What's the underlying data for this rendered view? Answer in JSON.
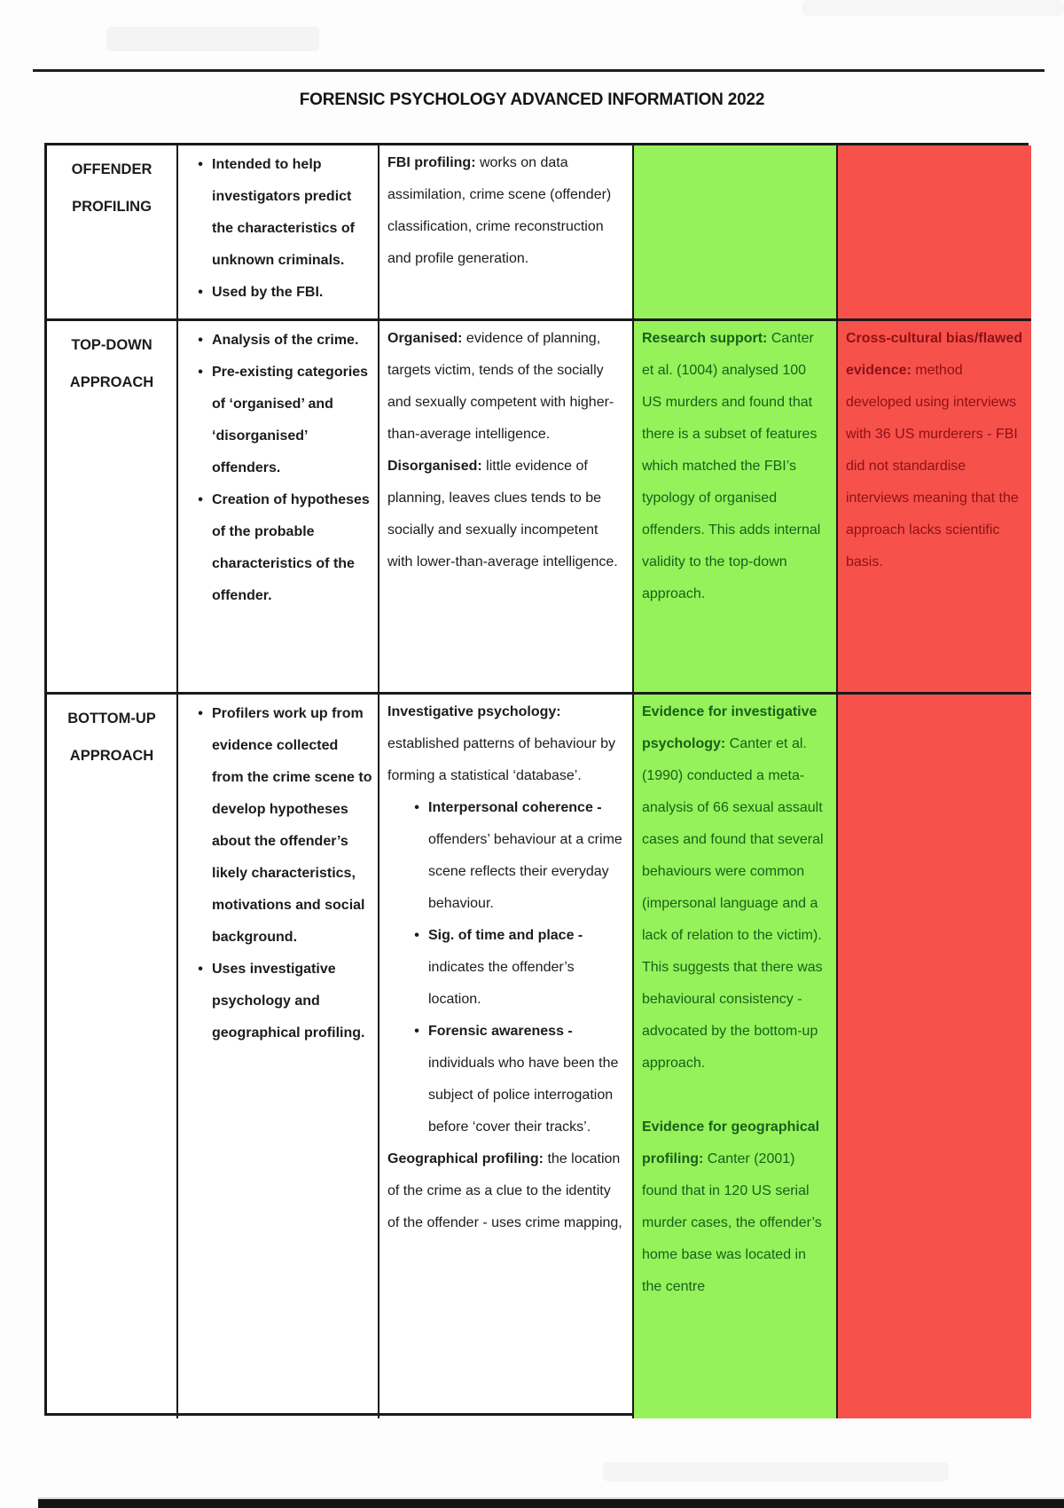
{
  "title": "FORENSIC PSYCHOLOGY ADVANCED INFORMATION 2022",
  "colors": {
    "green_bg": "#96F25A",
    "green_text": "#17611B",
    "red_bg": "#F7514C",
    "red_text": "#8C1115",
    "border": "#1A1A1A",
    "body_text": "#1C1C1C",
    "page_bg": "#FDFDFD"
  },
  "table": {
    "rows": [
      {
        "topic": "OFFENDER PROFILING",
        "points": [
          [
            {
              "t": "Intended to help investigators predict the characteristics of unknown criminals."
            }
          ],
          [
            {
              "t": "Used by the FBI."
            }
          ]
        ],
        "description": [
          {
            "type": "p",
            "segments": [
              {
                "b": true,
                "t": "FBI profiling:"
              },
              {
                "t": " works on data assimilation, crime scene (offender) classification, crime reconstruction and profile generation."
              }
            ]
          }
        ],
        "strength": [],
        "limitation": []
      },
      {
        "topic": "TOP-DOWN APPROACH",
        "points": [
          [
            {
              "t": "Analysis of the crime."
            }
          ],
          [
            {
              "t": "Pre-existing categories of ‘organised’ and ‘disorganised’ offenders."
            }
          ],
          [
            {
              "t": "Creation of hypotheses of the probable characteristics of the offender."
            }
          ]
        ],
        "description": [
          {
            "type": "p",
            "segments": [
              {
                "b": true,
                "t": "Organised:"
              },
              {
                "t": " evidence of planning, targets victim, tends of the socially and sexually competent with higher-than-average intelligence."
              }
            ]
          },
          {
            "type": "p",
            "segments": [
              {
                "b": true,
                "t": "Disorganised:"
              },
              {
                "t": " little evidence of planning, leaves clues tends to be socially and sexually incompetent with lower-than-average intelligence."
              }
            ]
          }
        ],
        "strength": [
          {
            "type": "p",
            "segments": [
              {
                "b": true,
                "t": "Research support:"
              },
              {
                "t": " Canter et al. (1004) analysed 100 US murders and found that there is a subset of features which matched the FBI’s typology of organised offenders. This adds internal validity to the top-down approach."
              }
            ]
          }
        ],
        "limitation": [
          {
            "type": "p",
            "segments": [
              {
                "b": true,
                "t": "Cross-cultural bias/flawed evidence:"
              },
              {
                "t": " method developed using interviews with 36 US murderers - FBI did not standardise interviews meaning that the approach lacks scientific basis."
              }
            ]
          }
        ]
      },
      {
        "topic": "BOTTOM-UP APPROACH",
        "points": [
          [
            {
              "t": "Profilers work up from evidence collected from the crime scene to develop hypotheses about the offender’s likely characteristics, motivations and social background."
            }
          ],
          [
            {
              "t": "Uses investigative psychology and geographical profiling."
            }
          ]
        ],
        "description": [
          {
            "type": "p",
            "segments": [
              {
                "b": true,
                "t": "Investigative psychology:"
              },
              {
                "t": " established patterns of behaviour by forming a statistical ‘database’."
              }
            ]
          },
          {
            "type": "bullets",
            "items": [
              [
                {
                  "b": true,
                  "t": "Interpersonal coherence -"
                },
                {
                  "t": " offenders’ behaviour at a crime scene reflects their everyday behaviour."
                }
              ],
              [
                {
                  "b": true,
                  "t": "Sig. of time and place -"
                },
                {
                  "t": " indicates the offender’s location."
                }
              ],
              [
                {
                  "b": true,
                  "t": "Forensic awareness -"
                },
                {
                  "t": " individuals who have been the subject of police interrogation before ‘cover their tracks’."
                }
              ]
            ]
          },
          {
            "type": "p",
            "segments": [
              {
                "b": true,
                "t": "Geographical profiling:"
              },
              {
                "t": " the location of the crime as a clue to the identity of the offender - uses crime mapping,"
              }
            ]
          }
        ],
        "strength": [
          {
            "type": "p",
            "segments": [
              {
                "b": true,
                "t": "Evidence for investigative psychology:"
              },
              {
                "t": " Canter et al. (1990) conducted a meta-analysis of 66 sexual assault cases and found that several behaviours were common (impersonal language and a lack of relation to the victim). This suggests that there was behavioural consistency - advocated by the bottom-up approach."
              }
            ]
          },
          {
            "type": "spacer"
          },
          {
            "type": "p",
            "segments": [
              {
                "b": true,
                "t": "Evidence for geographical profiling:"
              },
              {
                "t": " Canter (2001) found that in 120 US serial murder cases, the offender’s home base was located in the centre"
              }
            ]
          }
        ],
        "limitation": []
      }
    ]
  }
}
